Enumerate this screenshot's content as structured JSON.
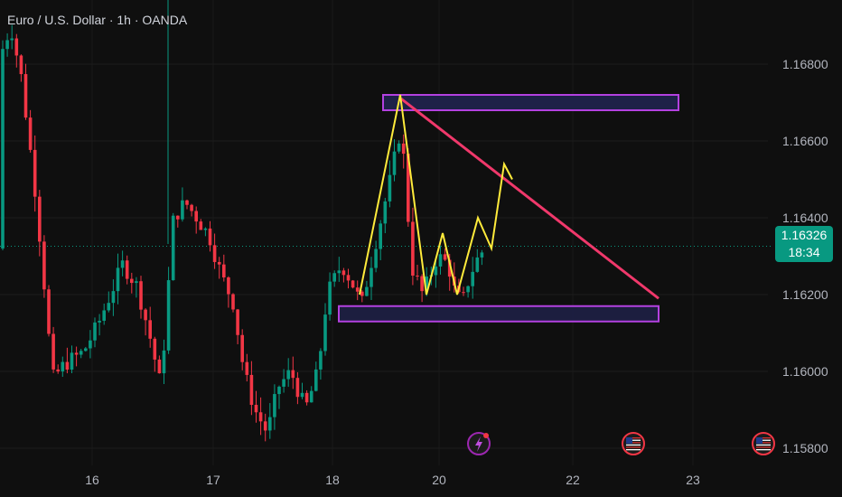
{
  "header": {
    "title": "Euro / U.S. Dollar · 1h · OANDA"
  },
  "price_badge": {
    "price": "1.16326",
    "countdown": "18:34"
  },
  "icons": [
    "lightning-event-icon",
    "us-flag-event-icon",
    "us-flag-event-icon"
  ],
  "colors": {
    "background": "#0f0f0f",
    "up": "#089981",
    "down": "#f23645",
    "zone_border": "#b341e0",
    "zone_fill": "#1e2148",
    "trendline": "#f0386b",
    "pattern_path": "#ffeb3b",
    "axis_text": "#b2b5be"
  },
  "chart_data": {
    "type": "candlestick",
    "symbol": "EURUSD",
    "timeframe": "1h",
    "ylim": [
      1.1568,
      1.1702
    ],
    "y_ticks": [
      "1.16800",
      "1.16600",
      "1.16400",
      "1.16200",
      "1.16000",
      "1.15800"
    ],
    "x_ticks": [
      "16",
      "17",
      "18",
      "20",
      "22",
      "23"
    ],
    "current_price": 1.16326,
    "annotations": {
      "resistance_zone": {
        "low": 1.1668,
        "high": 1.1672
      },
      "support_zone": {
        "low": 1.1613,
        "high": 1.1617
      },
      "descending_trendline": {
        "from": 1.1671,
        "to": 1.1619
      },
      "projected_path": [
        1.162,
        1.1672,
        1.162,
        1.1636,
        1.162,
        1.164,
        1.1632,
        1.1654,
        1.165
      ]
    },
    "candles_summary": "approximate hourly OHLC drawn by script"
  }
}
